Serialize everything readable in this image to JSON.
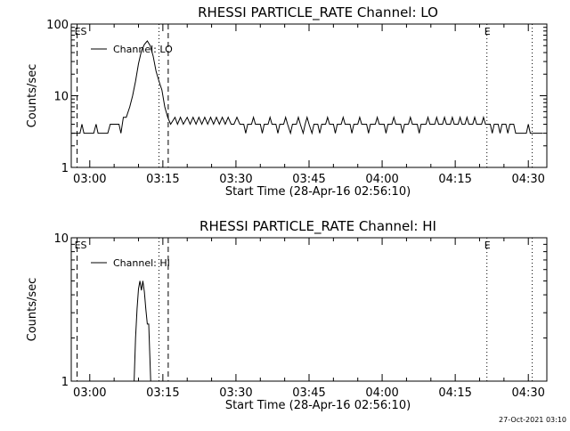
{
  "chart_data": [
    {
      "type": "line",
      "title": "RHESSI PARTICLE_RATE Channel: LO",
      "xlabel": "Start Time (28-Apr-16 02:56:10)",
      "ylabel": "Counts/sec",
      "yscale": "log",
      "ylim": [
        1,
        100
      ],
      "yticks": [
        {
          "v": 1,
          "label": "1"
        },
        {
          "v": 10,
          "label": "10"
        },
        {
          "v": 100,
          "label": "100"
        }
      ],
      "xlim_minutes": [
        56.2,
        153.8
      ],
      "xticks": [
        {
          "m": 60,
          "label": "03:00"
        },
        {
          "m": 75,
          "label": "03:15"
        },
        {
          "m": 90,
          "label": "03:30"
        },
        {
          "m": 105,
          "label": "03:45"
        },
        {
          "m": 120,
          "label": "04:00"
        },
        {
          "m": 135,
          "label": "04:15"
        },
        {
          "m": 150,
          "label": "04:30"
        }
      ],
      "legend": {
        "position": "top-left",
        "entries": [
          "Channel: LO"
        ]
      },
      "markers": [
        {
          "m": 57.4,
          "style": "dashed",
          "label": "ES"
        },
        {
          "m": 74.2,
          "style": "dotted",
          "label": ""
        },
        {
          "m": 76.1,
          "style": "dashed",
          "label": ""
        },
        {
          "m": 141.5,
          "style": "dotted",
          "label": "E"
        },
        {
          "m": 150.8,
          "style": "dotted",
          "label": ""
        }
      ],
      "series": [
        {
          "name": "Channel: LO",
          "points": [
            [
              56.2,
              3
            ],
            [
              58.0,
              3
            ],
            [
              58.4,
              4
            ],
            [
              58.8,
              3
            ],
            [
              60.8,
              3
            ],
            [
              61.3,
              4
            ],
            [
              61.7,
              3
            ],
            [
              63.7,
              3
            ],
            [
              64.2,
              4
            ],
            [
              66.0,
              4
            ],
            [
              66.4,
              3
            ],
            [
              66.9,
              5
            ],
            [
              67.5,
              5
            ],
            [
              68.2,
              7
            ],
            [
              68.8,
              10
            ],
            [
              69.4,
              16
            ],
            [
              70.0,
              28
            ],
            [
              70.6,
              42
            ],
            [
              71.2,
              52
            ],
            [
              71.8,
              58
            ],
            [
              72.4,
              50
            ],
            [
              73.0,
              36
            ],
            [
              73.6,
              22
            ],
            [
              74.2,
              16
            ],
            [
              74.8,
              12
            ],
            [
              75.4,
              7
            ],
            [
              76.0,
              5
            ],
            [
              76.6,
              4
            ],
            [
              77.5,
              5
            ],
            [
              78.0,
              4
            ],
            [
              78.6,
              5
            ],
            [
              79.2,
              4
            ],
            [
              80.0,
              5
            ],
            [
              80.6,
              4
            ],
            [
              81.2,
              5
            ],
            [
              81.8,
              4
            ],
            [
              82.4,
              5
            ],
            [
              83.0,
              4
            ],
            [
              83.6,
              5
            ],
            [
              84.2,
              4
            ],
            [
              84.8,
              5
            ],
            [
              85.4,
              4
            ],
            [
              86.0,
              5
            ],
            [
              86.6,
              4
            ],
            [
              87.2,
              5
            ],
            [
              87.8,
              4
            ],
            [
              88.4,
              5
            ],
            [
              89.0,
              4
            ],
            [
              89.6,
              4
            ],
            [
              90.2,
              5
            ],
            [
              90.8,
              4
            ],
            [
              91.6,
              4
            ],
            [
              92.0,
              3
            ],
            [
              92.4,
              4
            ],
            [
              93.2,
              4
            ],
            [
              93.6,
              5
            ],
            [
              94.0,
              4
            ],
            [
              95.0,
              4
            ],
            [
              95.4,
              3
            ],
            [
              95.8,
              4
            ],
            [
              96.6,
              4
            ],
            [
              97.0,
              5
            ],
            [
              97.4,
              4
            ],
            [
              98.2,
              4
            ],
            [
              98.6,
              3
            ],
            [
              99.0,
              4
            ],
            [
              99.8,
              4
            ],
            [
              100.2,
              5
            ],
            [
              100.6,
              4
            ],
            [
              101.2,
              3
            ],
            [
              101.6,
              4
            ],
            [
              102.4,
              4
            ],
            [
              102.8,
              5
            ],
            [
              103.2,
              4
            ],
            [
              103.8,
              3
            ],
            [
              104.2,
              4
            ],
            [
              104.6,
              5
            ],
            [
              105.0,
              4
            ],
            [
              105.6,
              3
            ],
            [
              106.0,
              4
            ],
            [
              106.8,
              4
            ],
            [
              107.2,
              3
            ],
            [
              107.6,
              4
            ],
            [
              108.4,
              4
            ],
            [
              108.8,
              5
            ],
            [
              109.2,
              4
            ],
            [
              110.0,
              4
            ],
            [
              110.4,
              3
            ],
            [
              110.8,
              4
            ],
            [
              111.6,
              4
            ],
            [
              112.0,
              5
            ],
            [
              112.4,
              4
            ],
            [
              113.4,
              4
            ],
            [
              113.8,
              3
            ],
            [
              114.2,
              4
            ],
            [
              115.0,
              4
            ],
            [
              115.4,
              5
            ],
            [
              115.8,
              4
            ],
            [
              116.8,
              4
            ],
            [
              117.2,
              3
            ],
            [
              117.6,
              4
            ],
            [
              118.6,
              4
            ],
            [
              119.0,
              5
            ],
            [
              119.4,
              4
            ],
            [
              120.4,
              4
            ],
            [
              120.8,
              3
            ],
            [
              121.2,
              4
            ],
            [
              122.0,
              4
            ],
            [
              122.4,
              5
            ],
            [
              122.8,
              4
            ],
            [
              123.8,
              4
            ],
            [
              124.2,
              3
            ],
            [
              124.6,
              4
            ],
            [
              125.4,
              4
            ],
            [
              125.8,
              5
            ],
            [
              126.2,
              4
            ],
            [
              127.2,
              4
            ],
            [
              127.6,
              3
            ],
            [
              128.0,
              4
            ],
            [
              129.0,
              4
            ],
            [
              129.4,
              5
            ],
            [
              129.8,
              4
            ],
            [
              130.8,
              4
            ],
            [
              131.2,
              5
            ],
            [
              131.6,
              4
            ],
            [
              132.4,
              4
            ],
            [
              132.8,
              5
            ],
            [
              133.2,
              4
            ],
            [
              134.0,
              4
            ],
            [
              134.4,
              5
            ],
            [
              134.8,
              4
            ],
            [
              135.6,
              4
            ],
            [
              136.0,
              5
            ],
            [
              136.4,
              4
            ],
            [
              137.0,
              4
            ],
            [
              137.4,
              5
            ],
            [
              137.8,
              4
            ],
            [
              138.6,
              4
            ],
            [
              139.0,
              5
            ],
            [
              139.4,
              4
            ],
            [
              140.4,
              4
            ],
            [
              140.8,
              5
            ],
            [
              141.2,
              4
            ],
            [
              142.2,
              4
            ],
            [
              142.6,
              3
            ],
            [
              143.0,
              4
            ],
            [
              143.8,
              4
            ],
            [
              144.2,
              3
            ],
            [
              144.6,
              4
            ],
            [
              145.4,
              4
            ],
            [
              145.8,
              3
            ],
            [
              146.2,
              4
            ],
            [
              147.0,
              4
            ],
            [
              147.4,
              3
            ],
            [
              149.6,
              3
            ],
            [
              150.0,
              4
            ],
            [
              150.4,
              3
            ],
            [
              153.0,
              3
            ]
          ]
        }
      ]
    },
    {
      "type": "line",
      "title": "RHESSI PARTICLE_RATE Channel: HI",
      "xlabel": "Start Time (28-Apr-16 02:56:10)",
      "ylabel": "Counts/sec",
      "yscale": "log",
      "ylim": [
        1,
        10
      ],
      "yticks": [
        {
          "v": 1,
          "label": "1"
        },
        {
          "v": 10,
          "label": "10"
        }
      ],
      "xlim_minutes": [
        56.2,
        153.8
      ],
      "xticks": [
        {
          "m": 60,
          "label": "03:00"
        },
        {
          "m": 75,
          "label": "03:15"
        },
        {
          "m": 90,
          "label": "03:30"
        },
        {
          "m": 105,
          "label": "03:45"
        },
        {
          "m": 120,
          "label": "04:00"
        },
        {
          "m": 135,
          "label": "04:15"
        },
        {
          "m": 150,
          "label": "04:30"
        }
      ],
      "legend": {
        "position": "top-left",
        "entries": [
          "Channel: HI"
        ]
      },
      "markers": [
        {
          "m": 57.4,
          "style": "dashed",
          "label": "ES"
        },
        {
          "m": 74.2,
          "style": "dotted",
          "label": ""
        },
        {
          "m": 76.1,
          "style": "dashed",
          "label": ""
        },
        {
          "m": 141.5,
          "style": "dotted",
          "label": "E"
        },
        {
          "m": 150.8,
          "style": "dotted",
          "label": ""
        }
      ],
      "series": [
        {
          "name": "Channel: HI",
          "points": [
            [
              69.1,
              1
            ],
            [
              69.4,
              2
            ],
            [
              69.7,
              3.2
            ],
            [
              70.0,
              4.4
            ],
            [
              70.3,
              5.0
            ],
            [
              70.6,
              4.3
            ],
            [
              70.9,
              5.0
            ],
            [
              71.2,
              4.2
            ],
            [
              71.5,
              3.2
            ],
            [
              71.8,
              2.5
            ],
            [
              72.1,
              2.5
            ],
            [
              72.5,
              1
            ]
          ]
        }
      ]
    }
  ],
  "footer": {
    "timestamp": "27-Oct-2021 03:10"
  }
}
